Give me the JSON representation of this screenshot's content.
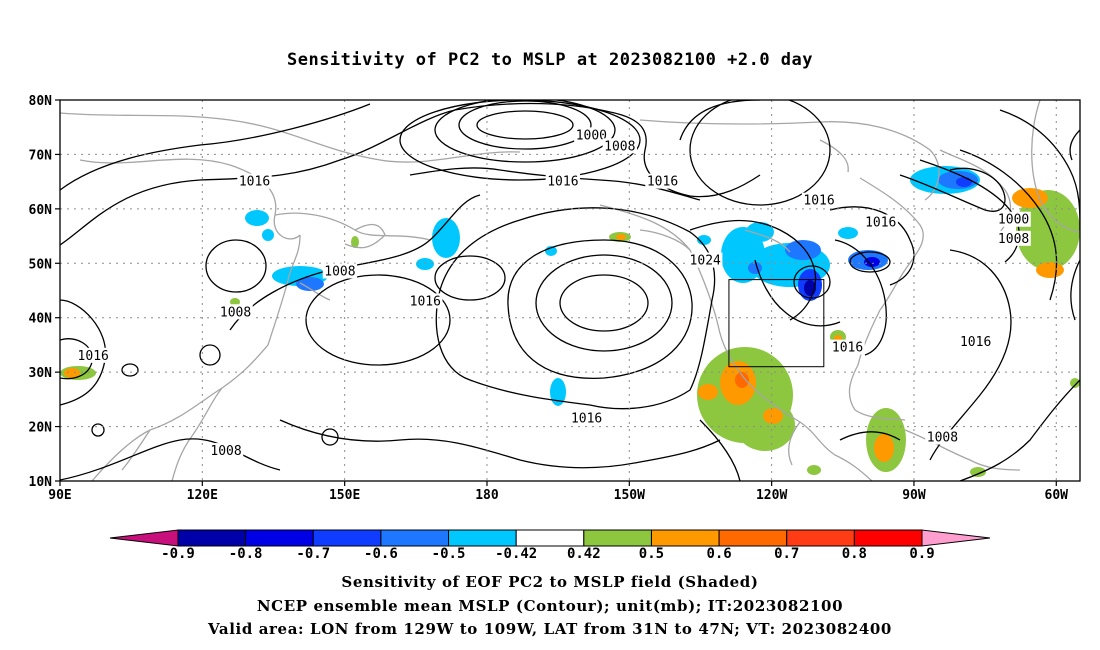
{
  "title": "Sensitivity of PC2 to MSLP at 2023082100 +2.0 day",
  "captions": [
    "Sensitivity of EOF PC2 to MSLP field (Shaded)",
    "NCEP ensemble mean MSLP (Contour); unit(mb); IT:2023082100",
    "Valid area: LON from 129W to 109W, LAT from 31N to 47N; VT: 2023082400"
  ],
  "map": {
    "lon_range_east": [
      90,
      305
    ],
    "lat_range": [
      10,
      80
    ],
    "lat_ticks": [
      {
        "value": 80,
        "label": "80N"
      },
      {
        "value": 70,
        "label": "70N"
      },
      {
        "value": 60,
        "label": "60N"
      },
      {
        "value": 50,
        "label": "50N"
      },
      {
        "value": 40,
        "label": "40N"
      },
      {
        "value": 30,
        "label": "30N"
      },
      {
        "value": 20,
        "label": "20N"
      },
      {
        "value": 10,
        "label": "10N"
      }
    ],
    "lon_ticks": [
      {
        "value": 90,
        "label": "90E"
      },
      {
        "value": 120,
        "label": "120E"
      },
      {
        "value": 150,
        "label": "150E"
      },
      {
        "value": 180,
        "label": "180"
      },
      {
        "value": 210,
        "label": "150W"
      },
      {
        "value": 240,
        "label": "120W"
      },
      {
        "value": 270,
        "label": "90W"
      },
      {
        "value": 300,
        "label": "60W"
      }
    ],
    "valid_area": {
      "lon_west": [
        -129,
        -109
      ],
      "lat": [
        31,
        47
      ]
    },
    "gridlines": "dotted"
  },
  "contour_labels": [
    {
      "text": "1000",
      "lon": 202,
      "lat": 73.5
    },
    {
      "text": "1008",
      "lon": 208,
      "lat": 71.5
    },
    {
      "text": "1016",
      "lon": 131,
      "lat": 65
    },
    {
      "text": "1016",
      "lon": 196,
      "lat": 65
    },
    {
      "text": "1016",
      "lon": 217,
      "lat": 65
    },
    {
      "text": "1016",
      "lon": 250,
      "lat": 61.5
    },
    {
      "text": "1016",
      "lon": 263,
      "lat": 57.5
    },
    {
      "text": "1000",
      "lon": 291,
      "lat": 58
    },
    {
      "text": "1008",
      "lon": 291,
      "lat": 54.5
    },
    {
      "text": "1008",
      "lon": 149,
      "lat": 48.5
    },
    {
      "text": "1008",
      "lon": 127,
      "lat": 41
    },
    {
      "text": "1016",
      "lon": 167,
      "lat": 43
    },
    {
      "text": "1024",
      "lon": 226,
      "lat": 50.5
    },
    {
      "text": "1016",
      "lon": 97,
      "lat": 33
    },
    {
      "text": "1016",
      "lon": 256,
      "lat": 34.5
    },
    {
      "text": "1016",
      "lon": 283,
      "lat": 35.5
    },
    {
      "text": "1016",
      "lon": 201,
      "lat": 21.5
    },
    {
      "text": "1008",
      "lon": 125,
      "lat": 15.5
    },
    {
      "text": "1008",
      "lon": 276,
      "lat": 18
    }
  ],
  "colorbar": {
    "labels": [
      "-0.9",
      "-0.8",
      "-0.7",
      "-0.6",
      "-0.5",
      "-0.42",
      "0.42",
      "0.5",
      "0.6",
      "0.7",
      "0.8",
      "0.9"
    ],
    "colors": [
      "#0000a8",
      "#0000e6",
      "#0f3cff",
      "#1e78ff",
      "#00c8ff",
      "#ffffff",
      "#8dc63f",
      "#ff9900",
      "#ff6a00",
      "#ff3c14",
      "#ff0000"
    ],
    "low_end_color": "#c8107c",
    "high_end_color": "#ff9ecf"
  },
  "colors": {
    "contour": "#000000",
    "coastline": "#a6a6a6",
    "grid": "#8c8c8c",
    "valid_area_box": "#000000"
  }
}
